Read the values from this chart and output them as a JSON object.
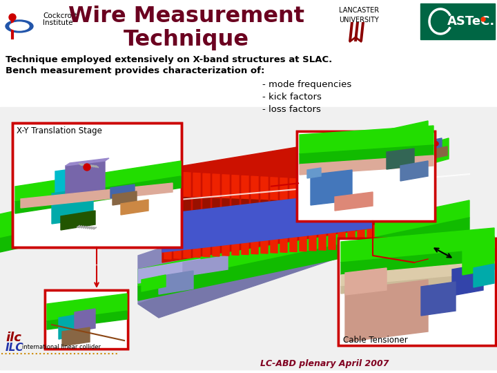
{
  "title_line1": "Wire Measurement",
  "title_line2": "Technique",
  "institute_text1": "Cockcroft",
  "institute_text2": "Institute",
  "subtitle1": "Technique employed extensively on X-band structures at SLAC.",
  "subtitle2": "Bench measurement provides characterization of:",
  "bullets": [
    "- mode frequencies",
    "- kick factors",
    "- loss factors"
  ],
  "label_xy": "X-Y Translation Stage",
  "label_cable": "Cable Tensioner",
  "footer": "LC-ABD plenary April 2007",
  "ilc_text": "international linear collider",
  "bg_color": "#ffffff",
  "title_color": "#6B0020",
  "text_color": "#000000",
  "subtitle_color": "#000000",
  "bullet_color": "#000000",
  "footer_color": "#800020",
  "border_color": "#cc0000",
  "astec_bg": "#006644",
  "astec_text": "#ffffff",
  "green1": "#22dd00",
  "green2": "#11bb00",
  "red1": "#dd2200",
  "blue1": "#9999cc",
  "cyan1": "#00cccc",
  "purple1": "#7766aa"
}
